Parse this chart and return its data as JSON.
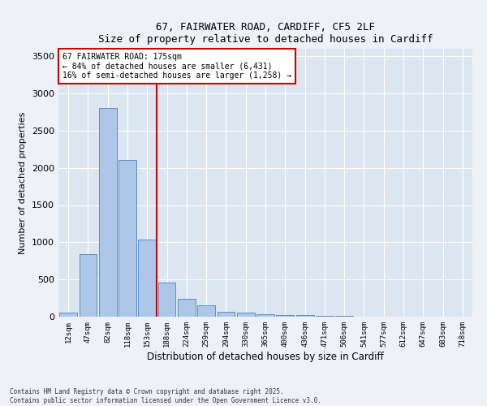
{
  "title_line1": "67, FAIRWATER ROAD, CARDIFF, CF5 2LF",
  "title_line2": "Size of property relative to detached houses in Cardiff",
  "xlabel": "Distribution of detached houses by size in Cardiff",
  "ylabel": "Number of detached properties",
  "bar_labels": [
    "12sqm",
    "47sqm",
    "82sqm",
    "118sqm",
    "153sqm",
    "188sqm",
    "224sqm",
    "259sqm",
    "294sqm",
    "330sqm",
    "365sqm",
    "400sqm",
    "436sqm",
    "471sqm",
    "506sqm",
    "541sqm",
    "577sqm",
    "612sqm",
    "647sqm",
    "683sqm",
    "718sqm"
  ],
  "bar_values": [
    55,
    840,
    2800,
    2110,
    1040,
    460,
    240,
    155,
    65,
    50,
    30,
    25,
    20,
    10,
    8,
    5,
    3,
    2,
    1,
    1,
    1
  ],
  "bar_color": "#aec6e8",
  "bar_edge_color": "#5a8fc0",
  "property_line": "67 FAIRWATER ROAD: 175sqm",
  "annotation_line2": "← 84% of detached houses are smaller (6,431)",
  "annotation_line3": "16% of semi-detached houses are larger (1,258) →",
  "annotation_box_color": "#ffffff",
  "annotation_box_edge": "#cc0000",
  "vline_color": "#cc0000",
  "vline_x": 4.5,
  "ylim": [
    0,
    3600
  ],
  "yticks": [
    0,
    500,
    1000,
    1500,
    2000,
    2500,
    3000,
    3500
  ],
  "footer_line1": "Contains HM Land Registry data © Crown copyright and database right 2025.",
  "footer_line2": "Contains public sector information licensed under the Open Government Licence v3.0.",
  "bg_color": "#eef2f8",
  "plot_bg_color": "#dce6f0"
}
